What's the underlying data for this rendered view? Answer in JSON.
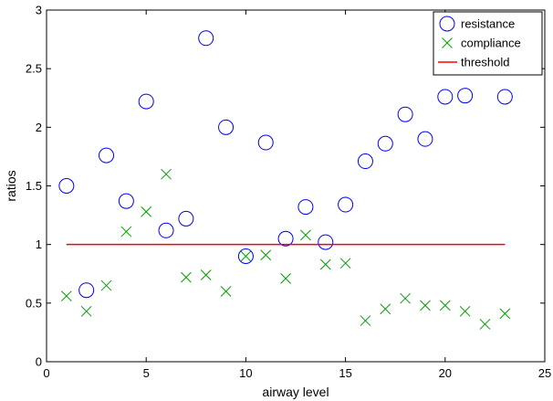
{
  "chart_data": {
    "type": "scatter",
    "title": "",
    "xlabel": "airway level",
    "ylabel": "ratios",
    "xlim": [
      0,
      25
    ],
    "ylim": [
      0,
      3
    ],
    "xticks": [
      0,
      5,
      10,
      15,
      20,
      25
    ],
    "xtick_labels": [
      "0",
      "5",
      "10",
      "15",
      "20",
      "25"
    ],
    "yticks": [
      0,
      0.5,
      1,
      1.5,
      2,
      2.5,
      3
    ],
    "ytick_labels": [
      "0",
      "0.5",
      "1",
      "1.5",
      "2",
      "2.5",
      "3"
    ],
    "grid": false,
    "legend_position": "top-right",
    "series": [
      {
        "name": "resistance",
        "marker": "circle",
        "color": "#0000ff",
        "x": [
          1,
          2,
          3,
          4,
          5,
          6,
          7,
          8,
          9,
          10,
          11,
          12,
          13,
          14,
          15,
          16,
          17,
          18,
          19,
          20,
          21,
          23
        ],
        "y": [
          1.5,
          0.61,
          1.76,
          1.37,
          2.22,
          1.12,
          1.22,
          2.76,
          2.0,
          0.9,
          1.87,
          1.05,
          1.32,
          1.02,
          1.34,
          1.71,
          1.86,
          2.11,
          1.9,
          2.26,
          2.27,
          2.26
        ]
      },
      {
        "name": "compliance",
        "marker": "x",
        "color": "#00a000",
        "x": [
          1,
          2,
          3,
          4,
          5,
          6,
          7,
          8,
          9,
          10,
          11,
          12,
          13,
          14,
          15,
          16,
          17,
          18,
          19,
          20,
          21,
          22,
          23
        ],
        "y": [
          0.56,
          0.43,
          0.65,
          1.11,
          1.28,
          1.6,
          0.72,
          0.74,
          0.6,
          0.9,
          0.91,
          0.71,
          1.08,
          0.83,
          0.84,
          0.35,
          0.45,
          0.54,
          0.48,
          0.48,
          0.43,
          0.32,
          0.41
        ]
      },
      {
        "name": "threshold",
        "marker": "line",
        "color": "#ff0000",
        "x": [
          1,
          23
        ],
        "y": [
          1,
          1
        ]
      }
    ]
  }
}
